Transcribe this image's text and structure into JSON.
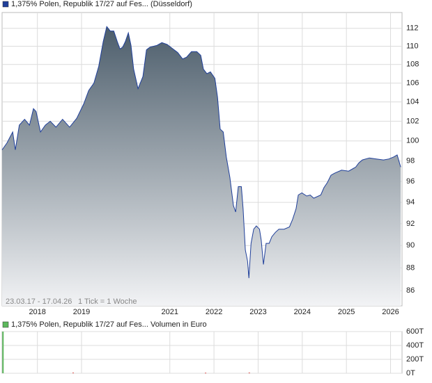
{
  "chart_data": [
    {
      "type": "area",
      "series": [
        {
          "name": "1,375% Polen, Republik 17/27 auf Fes... (Düsseldorf)",
          "color": "#1f3f9a",
          "x": [
            2017.2,
            2017.31,
            2017.44,
            2017.5,
            2017.59,
            2017.71,
            2017.82,
            2017.91,
            2017.97,
            2018.07,
            2018.18,
            2018.29,
            2018.42,
            2018.57,
            2018.73,
            2018.89,
            2019.05,
            2019.16,
            2019.28,
            2019.39,
            2019.49,
            2019.57,
            2019.65,
            2019.73,
            2019.81,
            2019.87,
            2019.93,
            2019.99,
            2020.06,
            2020.12,
            2020.18,
            2020.28,
            2020.39,
            2020.47,
            2020.55,
            2020.71,
            2020.82,
            2020.94,
            2021.07,
            2021.18,
            2021.29,
            2021.38,
            2021.49,
            2021.61,
            2021.7,
            2021.76,
            2021.84,
            2021.92,
            2022.02,
            2022.08,
            2022.14,
            2022.21,
            2022.28,
            2022.36,
            2022.44,
            2022.49,
            2022.55,
            2022.62,
            2022.66,
            2022.71,
            2022.76,
            2022.79,
            2022.84,
            2022.9,
            2022.96,
            2023.03,
            2023.07,
            2023.12,
            2023.18,
            2023.25,
            2023.31,
            2023.39,
            2023.47,
            2023.59,
            2023.71,
            2023.78,
            2023.86,
            2023.91,
            2023.99,
            2024.1,
            2024.18,
            2024.26,
            2024.42,
            2024.49,
            2024.57,
            2024.65,
            2024.73,
            2024.89,
            2025.05,
            2025.21,
            2025.28,
            2025.36,
            2025.52,
            2025.68,
            2025.84,
            2025.96,
            2026.07,
            2026.15,
            2026.23
          ],
          "values": [
            99.1,
            99.8,
            100.9,
            99.1,
            101.6,
            102.2,
            101.6,
            103.3,
            103.0,
            100.9,
            101.6,
            102.0,
            101.4,
            102.2,
            101.4,
            102.3,
            103.8,
            105.2,
            106.0,
            107.8,
            110.5,
            112.2,
            111.7,
            111.7,
            110.5,
            109.7,
            109.9,
            110.5,
            111.5,
            110.1,
            107.5,
            105.4,
            106.7,
            109.6,
            109.9,
            110.1,
            110.4,
            110.2,
            109.7,
            109.3,
            108.6,
            108.8,
            109.4,
            109.4,
            109.0,
            107.5,
            107.0,
            107.2,
            106.5,
            104.5,
            101.2,
            100.9,
            98.4,
            96.4,
            93.7,
            93.1,
            95.5,
            95.5,
            93.4,
            89.6,
            88.6,
            87.1,
            90.2,
            91.5,
            91.8,
            91.5,
            90.5,
            88.3,
            90.2,
            90.2,
            90.8,
            91.2,
            91.5,
            91.5,
            91.7,
            92.4,
            93.4,
            94.7,
            94.9,
            94.6,
            94.7,
            94.4,
            94.7,
            95.4,
            95.9,
            96.6,
            96.8,
            97.1,
            97.0,
            97.4,
            97.8,
            98.1,
            98.3,
            98.2,
            98.1,
            98.2,
            98.4,
            98.6,
            97.4
          ]
        }
      ],
      "xlim": [
        2017.2,
        2026.26
      ],
      "xticks": [
        2018,
        2019,
        2021,
        2022,
        2023,
        2024,
        2025,
        2026
      ],
      "ylim": [
        84.7,
        113.8
      ],
      "yticks": [
        86,
        88,
        90,
        92,
        94,
        96,
        98,
        100,
        102,
        104,
        106,
        108,
        110,
        112
      ],
      "log_y": true,
      "grid": true,
      "annotations": [
        "23.03.17 - 17.04.26",
        "1 Tick = 1 Woche"
      ]
    },
    {
      "type": "bar",
      "series": [
        {
          "name": "1,375% Polen, Republik 17/27 auf Fes... Volumen in Euro",
          "color": "#5cb85c",
          "x": [
            2017.22,
            2018.81,
            2021.81,
            2022.8
          ],
          "values": [
            600000,
            10000,
            8000,
            10000
          ],
          "colors": [
            "#5cb85c",
            "#d9534f",
            "#d9534f",
            "#d9534f"
          ]
        }
      ],
      "xlim": [
        2017.2,
        2026.26
      ],
      "xticks": [
        2018,
        2019,
        2021,
        2022,
        2023,
        2024,
        2025,
        2026
      ],
      "ylim": [
        0,
        600000
      ],
      "yticks": [
        {
          "value": 0,
          "label": "0T"
        },
        {
          "value": 200000,
          "label": "200T"
        },
        {
          "value": 400000,
          "label": "400T"
        },
        {
          "value": 600000,
          "label": "600T"
        }
      ],
      "grid": true
    }
  ]
}
